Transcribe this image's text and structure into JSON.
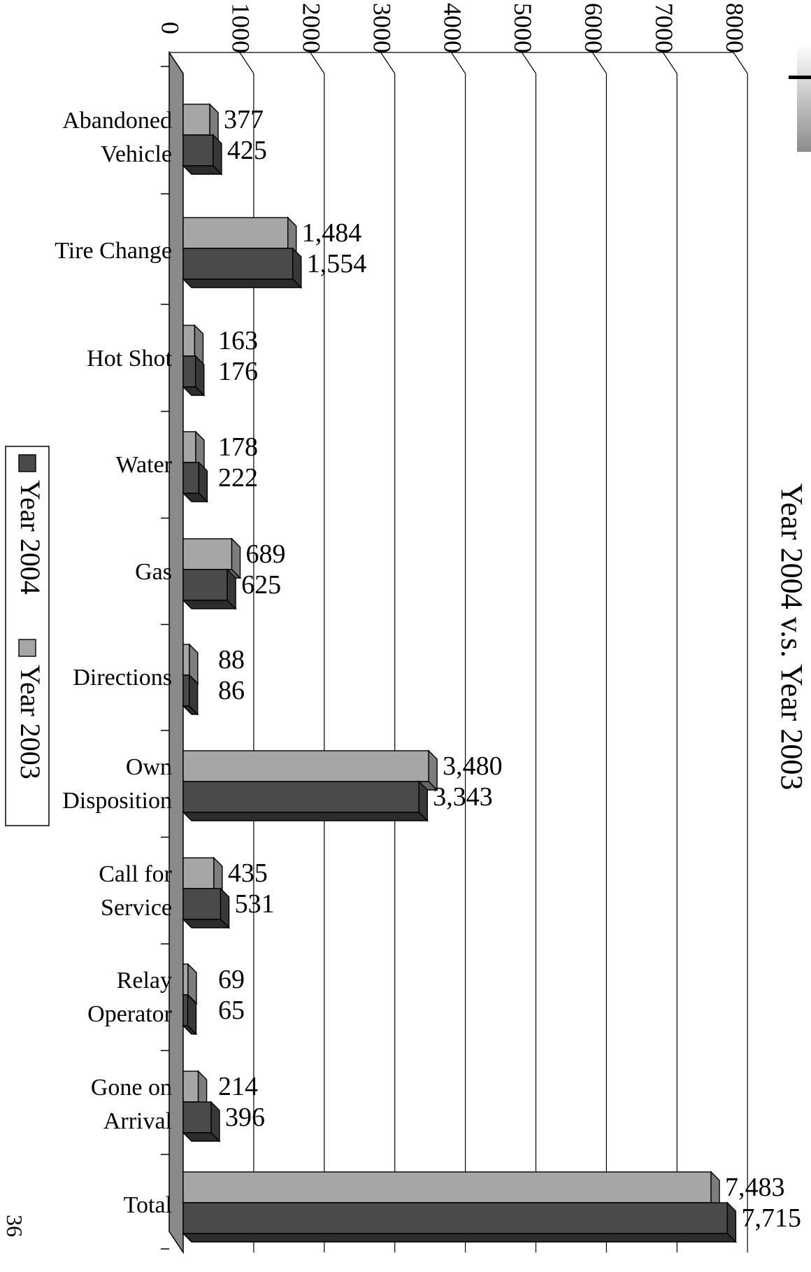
{
  "page_number": "36",
  "chart_data": {
    "type": "bar",
    "orientation": "horizontal",
    "title": "Year 2004 v.s. Year 2003",
    "categories": [
      [
        "Abandoned",
        "Vehicle"
      ],
      [
        "Tire Change"
      ],
      [
        "Hot Shot"
      ],
      [
        "Water"
      ],
      [
        "Gas"
      ],
      [
        "Directions"
      ],
      [
        "Own",
        "Disposition"
      ],
      [
        "Call for",
        "Service"
      ],
      [
        "Relay",
        "Operator"
      ],
      [
        "Gone on",
        "Arrival"
      ],
      [
        "Total"
      ]
    ],
    "series": [
      {
        "name": "Year 2003",
        "color": "#a6a6a6",
        "values": [
          377,
          1484,
          163,
          178,
          689,
          88,
          3480,
          435,
          69,
          214,
          7483
        ],
        "labels": [
          "377",
          "1,484",
          "163",
          "178",
          "689",
          "88",
          "3,480",
          "435",
          "69",
          "214",
          "7,483"
        ]
      },
      {
        "name": "Year 2004",
        "color": "#4a4a4a",
        "values": [
          425,
          1554,
          176,
          222,
          625,
          86,
          3343,
          531,
          65,
          396,
          7715
        ],
        "labels": [
          "425",
          "1,554",
          "176",
          "222",
          "625",
          "86",
          "3,343",
          "531",
          "65",
          "396",
          "7,715"
        ]
      }
    ],
    "value_axis": {
      "min": 0,
      "max": 8000,
      "ticks": [
        "0",
        "1000",
        "2000",
        "3000",
        "4000",
        "5000",
        "6000",
        "7000",
        "8000"
      ]
    },
    "grid": true,
    "legend": [
      "Year 2004",
      "Year 2003"
    ],
    "legend_position": "left",
    "three_d": true
  }
}
